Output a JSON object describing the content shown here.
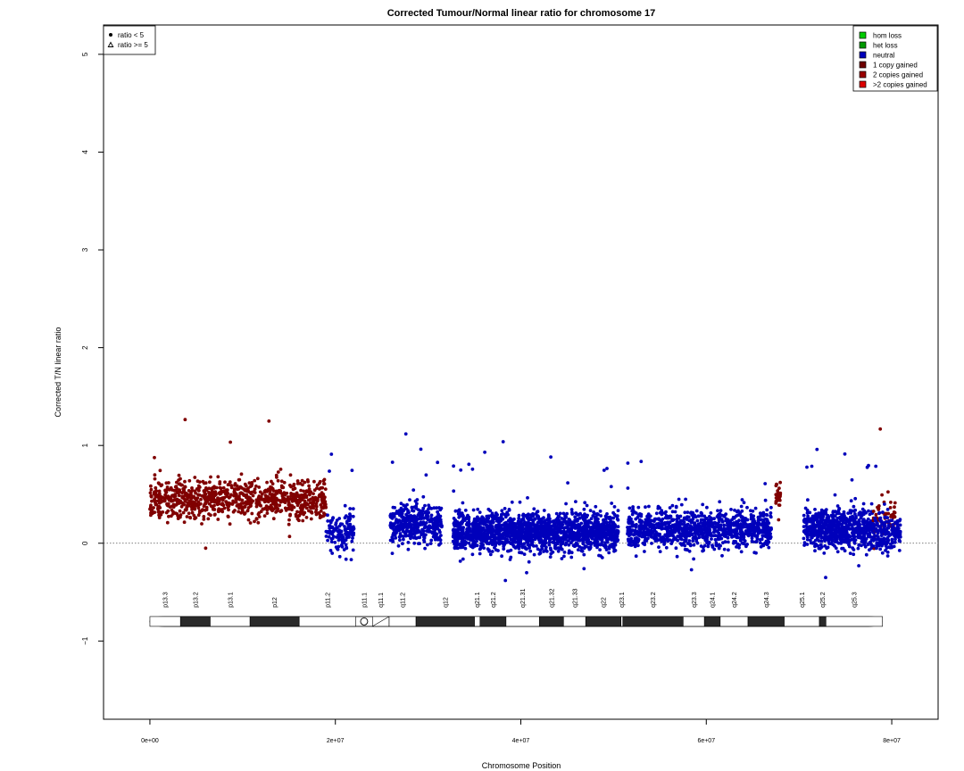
{
  "chart_data": {
    "type": "scatter",
    "title": "Corrected Tumour/Normal linear ratio for chromosome  17",
    "xlabel": "Chromosome Position",
    "ylabel": "Corrected T/N linear ratio",
    "xlim": [
      -5000000,
      85000000
    ],
    "ylim": [
      -1.8,
      5.3
    ],
    "x_ticks": [
      {
        "value": 0,
        "label": "0e+00"
      },
      {
        "value": 20000000,
        "label": "2e+07"
      },
      {
        "value": 40000000,
        "label": "4e+07"
      },
      {
        "value": 60000000,
        "label": "6e+07"
      },
      {
        "value": 80000000,
        "label": "8e+07"
      }
    ],
    "y_ticks": [
      {
        "value": -1,
        "label": "−1"
      },
      {
        "value": 0,
        "label": "0"
      },
      {
        "value": 1,
        "label": "1"
      },
      {
        "value": 2,
        "label": "2"
      },
      {
        "value": 3,
        "label": "3"
      },
      {
        "value": 4,
        "label": "4"
      },
      {
        "value": 5,
        "label": "5"
      }
    ],
    "reference_line": {
      "y": 0,
      "style": "dotted"
    },
    "shape_legend": {
      "placement": "top-left",
      "entries": [
        {
          "symbol": "dot",
          "label": "ratio < 5"
        },
        {
          "symbol": "triangle",
          "label": "ratio >= 5"
        }
      ]
    },
    "color_legend": {
      "placement": "top-right",
      "entries": [
        {
          "label": "hom loss",
          "color": "#00cc00"
        },
        {
          "label": "het loss",
          "color": "#009900"
        },
        {
          "label": "neutral",
          "color": "#0000bb"
        },
        {
          "label": "1 copy gained",
          "color": "#6e0000"
        },
        {
          "label": "2 copies gained",
          "color": "#990000"
        },
        {
          "label": ">2 copies gained",
          "color": "#dd0000"
        }
      ]
    },
    "segments": [
      {
        "start": 0,
        "end": 19000000,
        "state": "1 copy gained",
        "color": "#800000",
        "center": 0.45,
        "count": 900
      },
      {
        "start": 19000000,
        "end": 22000000,
        "state": "neutral",
        "color": "#0000bb",
        "center": 0.1,
        "count": 140
      },
      {
        "start": 25900000,
        "end": 31500000,
        "state": "neutral",
        "color": "#0000bb",
        "center": 0.2,
        "count": 380
      },
      {
        "start": 32700000,
        "end": 50500000,
        "state": "neutral",
        "color": "#0000bb",
        "center": 0.12,
        "count": 1700
      },
      {
        "start": 51500000,
        "end": 67000000,
        "state": "neutral",
        "color": "#0000bb",
        "center": 0.15,
        "count": 1000
      },
      {
        "start": 67500000,
        "end": 68000000,
        "state": "1 copy gained",
        "color": "#800000",
        "center": 0.5,
        "count": 30
      },
      {
        "start": 70500000,
        "end": 78000000,
        "state": "neutral",
        "color": "#0000bb",
        "center": 0.15,
        "count": 650
      },
      {
        "start": 78000000,
        "end": 80500000,
        "state": "1 copy gained",
        "color": "#800000",
        "center": 0.25,
        "count": 70
      },
      {
        "start": 78000000,
        "end": 81000000,
        "state": "neutral",
        "color": "#0000bb",
        "center": 0.1,
        "count": 180
      }
    ],
    "ideogram": {
      "y": -0.8,
      "bands": [
        {
          "name": "p13.3",
          "start": 0,
          "end": 3300000,
          "stain": "white"
        },
        {
          "name": "p13.2",
          "start": 3300000,
          "end": 6500000,
          "stain": "black"
        },
        {
          "name": "p13.1",
          "start": 6500000,
          "end": 10800000,
          "stain": "white"
        },
        {
          "name": "p12",
          "start": 10800000,
          "end": 16100000,
          "stain": "black"
        },
        {
          "name": "p11.2",
          "start": 16100000,
          "end": 22200000,
          "stain": "white"
        },
        {
          "name": "p11.1",
          "start": 22200000,
          "end": 24000000,
          "stain": "centromere"
        },
        {
          "name": "q11.1",
          "start": 24000000,
          "end": 25800000,
          "stain": "stalk"
        },
        {
          "name": "q11.2",
          "start": 25800000,
          "end": 28700000,
          "stain": "white"
        },
        {
          "name": "q12",
          "start": 28700000,
          "end": 35000000,
          "stain": "black"
        },
        {
          "name": "q21.1",
          "start": 35000000,
          "end": 35600000,
          "stain": "white"
        },
        {
          "name": "q21.2",
          "start": 35600000,
          "end": 38400000,
          "stain": "black"
        },
        {
          "name": "q21.31",
          "start": 38400000,
          "end": 42000000,
          "stain": "white"
        },
        {
          "name": "q21.32",
          "start": 42000000,
          "end": 44600000,
          "stain": "black"
        },
        {
          "name": "q21.33",
          "start": 44600000,
          "end": 47000000,
          "stain": "white"
        },
        {
          "name": "q22",
          "start": 47000000,
          "end": 50800000,
          "stain": "black"
        },
        {
          "name": "q23.1",
          "start": 50800000,
          "end": 51000000,
          "stain": "white"
        },
        {
          "name": "q23.2",
          "start": 51000000,
          "end": 57500000,
          "stain": "black"
        },
        {
          "name": "q23.3",
          "start": 57500000,
          "end": 59800000,
          "stain": "white"
        },
        {
          "name": "q24.1",
          "start": 59800000,
          "end": 61500000,
          "stain": "black"
        },
        {
          "name": "q24.2",
          "start": 61500000,
          "end": 64500000,
          "stain": "white"
        },
        {
          "name": "q24.3",
          "start": 64500000,
          "end": 68400000,
          "stain": "black"
        },
        {
          "name": "q25.1",
          "start": 68400000,
          "end": 72200000,
          "stain": "white"
        },
        {
          "name": "q25.2",
          "start": 72200000,
          "end": 72900000,
          "stain": "black"
        },
        {
          "name": "q25.3",
          "start": 72900000,
          "end": 79000000,
          "stain": "white"
        }
      ]
    }
  }
}
